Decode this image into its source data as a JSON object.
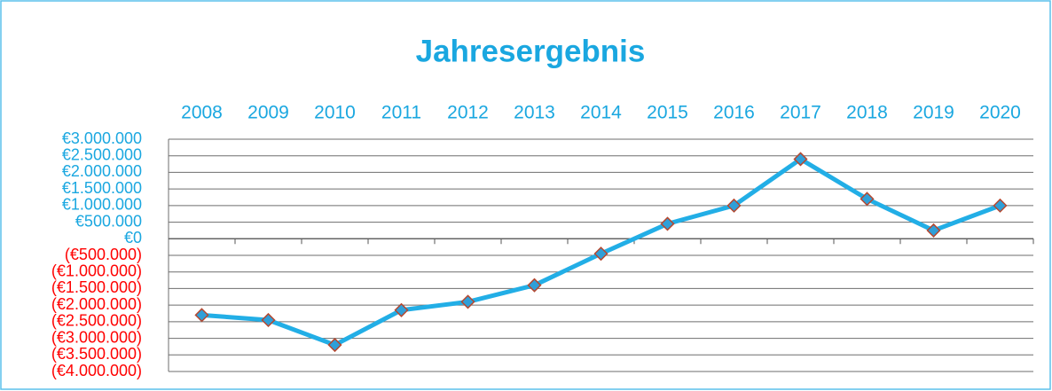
{
  "chart_data": {
    "type": "line",
    "title": "Jahresergebnis",
    "categories": [
      "2008",
      "2009",
      "2010",
      "2011",
      "2012",
      "2013",
      "2014",
      "2015",
      "2016",
      "2017",
      "2018",
      "2019",
      "2020"
    ],
    "series": [
      {
        "name": "Jahresergebnis",
        "color": "#22aee6",
        "marker_color": "#2f9fd8",
        "marker_edge_color": "#b5472f",
        "values": [
          -2300000,
          -2450000,
          -3200000,
          -2150000,
          -1900000,
          -1400000,
          -450000,
          450000,
          1000000,
          2400000,
          1200000,
          250000,
          1000000
        ]
      }
    ],
    "ylim": [
      -4000000,
      3000000
    ],
    "yticks": [
      {
        "value": -4000000,
        "label": "(€4.000.000)"
      },
      {
        "value": -3500000,
        "label": "(€3.500.000)"
      },
      {
        "value": -3000000,
        "label": "(€3.000.000)"
      },
      {
        "value": -2500000,
        "label": "(€2.500.000)"
      },
      {
        "value": -2000000,
        "label": "(€2.000.000)"
      },
      {
        "value": -1500000,
        "label": "(€1.500.000)"
      },
      {
        "value": -1000000,
        "label": "(€1.000.000)"
      },
      {
        "value": -500000,
        "label": "(€500.000)"
      },
      {
        "value": 0,
        "label": "€0"
      },
      {
        "value": 500000,
        "label": "€500.000"
      },
      {
        "value": 1000000,
        "label": "€1.000.000"
      },
      {
        "value": 1500000,
        "label": "€1.500.000"
      },
      {
        "value": 2000000,
        "label": "€2.000.000"
      },
      {
        "value": 2500000,
        "label": "€2.500.000"
      },
      {
        "value": 3000000,
        "label": "€3.000.000"
      }
    ],
    "grid": true,
    "text_color": "#1aa7e0",
    "negative_tick_color": "#ff0000"
  }
}
